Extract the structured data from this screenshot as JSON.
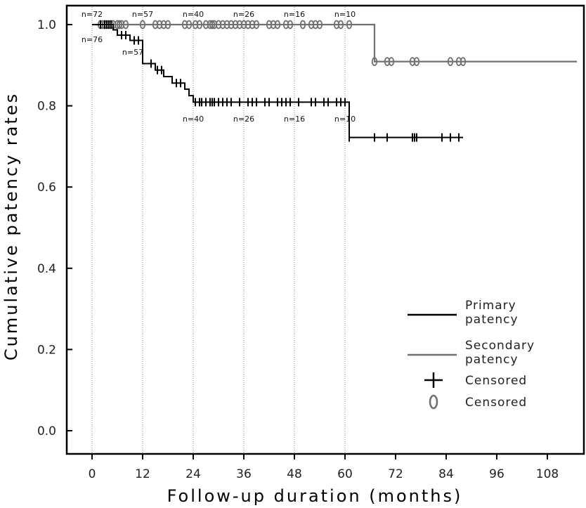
{
  "chart_data": {
    "type": "line",
    "subtype": "kaplan-meier",
    "xlabel": "Follow-up duration (months)",
    "ylabel": "Cumulative patency rates",
    "xlim": [
      -8,
      116
    ],
    "ylim": [
      -0.05,
      1.04
    ],
    "xticks": [
      0,
      12,
      24,
      36,
      48,
      60,
      72,
      84,
      96,
      108
    ],
    "xtick_labels": [
      "0",
      "12",
      "24",
      "36",
      "48",
      "60",
      "72",
      "84",
      "96",
      "108"
    ],
    "yticks": [
      0.0,
      0.2,
      0.4,
      0.6,
      0.8,
      1.0
    ],
    "ytick_labels": [
      "0.0",
      "0.2",
      "0.4",
      "0.6",
      "0.8",
      "1.0"
    ],
    "reference_lines_x": [
      0,
      12,
      24,
      36,
      48,
      60
    ],
    "colors": {
      "primary": "#000000",
      "secondary": "#707070",
      "reference": "#888888"
    },
    "series": [
      {
        "name": "Primary patency",
        "steps": [
          [
            0,
            1.0
          ],
          [
            5,
            0.987
          ],
          [
            6,
            0.974
          ],
          [
            9,
            0.961
          ],
          [
            12,
            0.904
          ],
          [
            15,
            0.888
          ],
          [
            17,
            0.872
          ],
          [
            19,
            0.856
          ],
          [
            22,
            0.841
          ],
          [
            23,
            0.825
          ],
          [
            24,
            0.809
          ],
          [
            61,
            0.722
          ],
          [
            88,
            0.722
          ]
        ],
        "censored": [
          2,
          3,
          3.5,
          4,
          4.5,
          7,
          8,
          10,
          11,
          14,
          15.5,
          16.5,
          20,
          21,
          24.5,
          25.5,
          26,
          27,
          28,
          28.5,
          29,
          30,
          31,
          32,
          33,
          35,
          37,
          38,
          39,
          41,
          42,
          44,
          45,
          46,
          47,
          49,
          52,
          53,
          55,
          56,
          58,
          59,
          60,
          61,
          67,
          70,
          76,
          76.5,
          77,
          83,
          85,
          87
        ]
      },
      {
        "name": "Secondary patency",
        "steps": [
          [
            0,
            1.0
          ],
          [
            67,
            0.909
          ],
          [
            115,
            0.909
          ]
        ],
        "censored": [
          2,
          2.5,
          3,
          3.5,
          4,
          4.5,
          5,
          6,
          6.5,
          7,
          8,
          12,
          15,
          16,
          17,
          18,
          22,
          23,
          24.5,
          25.5,
          27,
          28,
          28.5,
          29,
          30,
          31,
          32,
          33,
          34,
          35,
          36,
          37,
          38,
          39,
          42,
          43,
          44,
          46,
          47,
          50,
          52,
          53,
          54,
          58,
          59,
          61,
          67,
          70,
          71,
          76,
          77,
          85,
          87,
          88
        ]
      }
    ],
    "n_at_risk_primary": [
      {
        "x": 0,
        "label": "n=76"
      },
      {
        "x": 12,
        "label": "n=57"
      },
      {
        "x": 24,
        "label": "n=40"
      },
      {
        "x": 36,
        "label": "n=26"
      },
      {
        "x": 48,
        "label": "n=16"
      },
      {
        "x": 60,
        "label": "n=10"
      }
    ],
    "n_at_risk_secondary": [
      {
        "x": 0,
        "label": "n=72"
      },
      {
        "x": 12,
        "label": "n=57"
      },
      {
        "x": 24,
        "label": "n=40"
      },
      {
        "x": 36,
        "label": "n=26"
      },
      {
        "x": 48,
        "label": "n=16"
      },
      {
        "x": 60,
        "label": "n=10"
      }
    ],
    "legend": {
      "position": "bottom-right",
      "entries": [
        {
          "symbol": "line-primary",
          "lines": [
            "Primary",
            "patency"
          ]
        },
        {
          "symbol": "line-secondary",
          "lines": [
            "Secondary",
            "patency"
          ]
        },
        {
          "symbol": "plus",
          "lines": [
            "Censored"
          ]
        },
        {
          "symbol": "circle",
          "lines": [
            "Censored"
          ]
        }
      ]
    }
  }
}
